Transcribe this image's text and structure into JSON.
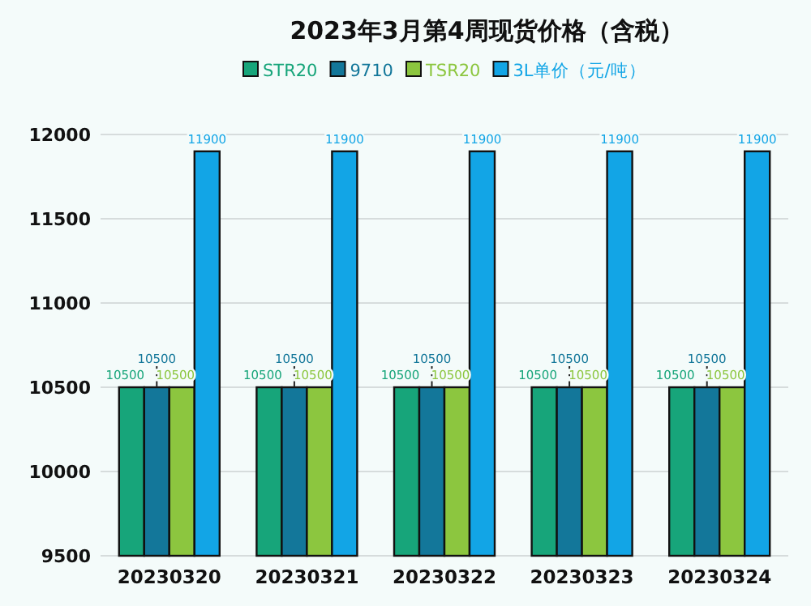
{
  "chart_data": {
    "type": "bar",
    "title": "2023年3月第4周现货价格（含税）",
    "categories": [
      "20230320",
      "20230321",
      "20230322",
      "20230323",
      "20230324"
    ],
    "series": [
      {
        "name": "STR20",
        "color": "#17a57a",
        "values": [
          10500,
          10500,
          10500,
          10500,
          10500
        ]
      },
      {
        "name": "9710",
        "color": "#13779a",
        "values": [
          10500,
          10500,
          10500,
          10500,
          10500
        ]
      },
      {
        "name": "TSR20",
        "color": "#8cc63f",
        "values": [
          10500,
          10500,
          10500,
          10500,
          10500
        ]
      },
      {
        "name": "3L单价（元/吨）",
        "color": "#12a5e6",
        "values": [
          11900,
          11900,
          11900,
          11900,
          11900
        ]
      }
    ],
    "ylim": [
      9500,
      12000
    ],
    "yticks": [
      9500,
      10000,
      10500,
      11000,
      11500,
      12000
    ],
    "grid": "y",
    "legend": "top",
    "data_labels": true
  }
}
